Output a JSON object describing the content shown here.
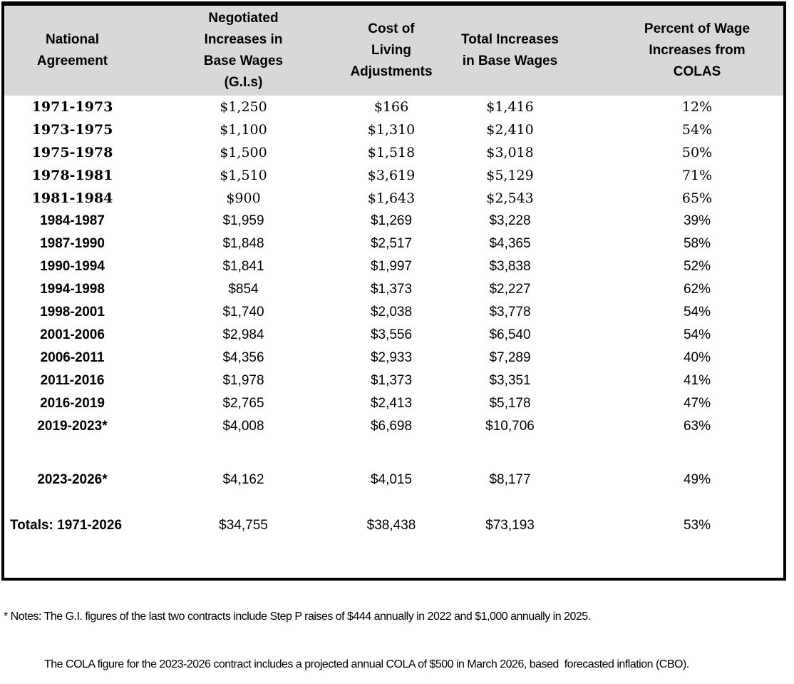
{
  "table": {
    "headers": [
      "National\nAgreement",
      "Negotiated\nIncreases in\nBase Wages\n(G.I.s)",
      "Cost of Living\nAdjustments",
      "Total Increases\nin Base Wages",
      "Percent of Wage\nIncreases from\nCOLAS"
    ],
    "rows": [
      [
        "1971-1973",
        "$1,250",
        "$166",
        "$1,416",
        "12%"
      ],
      [
        "1973-1975",
        "$1,100",
        "$1,310",
        "$2,410",
        "54%"
      ],
      [
        "1975-1978",
        "$1,500",
        "$1,518",
        "$3,018",
        "50%"
      ],
      [
        "1978-1981",
        "$1,510",
        "$3,619",
        "$5,129",
        "71%"
      ],
      [
        "1981-1984",
        "$900",
        "$1,643",
        "$2,543",
        "65%"
      ],
      [
        "1984-1987",
        "$1,959",
        "$1,269",
        "$3,228",
        "39%"
      ],
      [
        "1987-1990",
        "$1,848",
        "$2,517",
        "$4,365",
        "58%"
      ],
      [
        "1990-1994",
        "$1,841",
        "$1,997",
        "$3,838",
        "52%"
      ],
      [
        "1994-1998",
        "$854",
        "$1,373",
        "$2,227",
        "62%"
      ],
      [
        "1998-2001",
        "$1,740",
        "$2,038",
        "$3,778",
        "54%"
      ],
      [
        "2001-2006",
        "$2,984",
        "$3,556",
        "$6,540",
        "54%"
      ],
      [
        "2006-2011",
        "$4,356",
        "$2,933",
        "$7,289",
        "40%"
      ],
      [
        "2011-2016",
        "$1,978",
        "$1,373",
        "$3,351",
        "41%"
      ],
      [
        "2016-2019",
        "$2,765",
        "$2,413",
        "$5,178",
        "47%"
      ],
      [
        "2019-2023*",
        "$4,008",
        "$6,698",
        "$10,706",
        "63%"
      ],
      [
        "2023-2026*",
        "$4,162",
        "$4,015",
        "$8,177",
        "49%"
      ],
      [
        "Totals: 1971-2026",
        "$34,755",
        "$38,438",
        "$73,193",
        "53%"
      ]
    ],
    "notes": [
      "* Notes: The G.I. figures of the last two contracts include Step P raises of $444 annually in 2022 and $1,000 annually in 2025.",
      "The COLA figure for the 2023-2026 contract includes a projected annual COLA of $500 in March 2026, based  forecasted inflation (CBO)."
    ]
  },
  "colors": {
    "header_fill": "#d8d8d8",
    "border": "#000000"
  }
}
